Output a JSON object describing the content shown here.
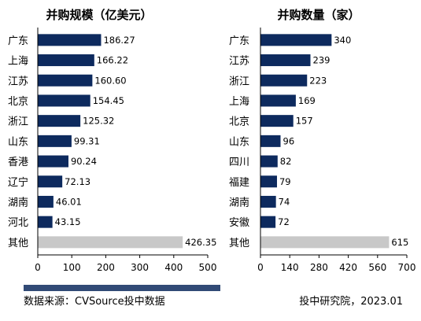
{
  "chart_data": [
    {
      "type": "bar",
      "orientation": "horizontal",
      "title": "并购规模（亿美元）",
      "categories": [
        "广东",
        "上海",
        "江苏",
        "北京",
        "浙江",
        "山东",
        "香港",
        "辽宁",
        "湖南",
        "河北",
        "其他"
      ],
      "values": [
        186.27,
        166.22,
        160.6,
        154.45,
        125.32,
        99.31,
        90.24,
        72.13,
        46.01,
        43.15,
        426.35
      ],
      "value_labels": [
        "186.27",
        "166.22",
        "160.60",
        "154.45",
        "125.32",
        "99.31",
        "90.24",
        "72.13",
        "46.01",
        "43.15",
        "426.35"
      ],
      "xlim": [
        0,
        500
      ],
      "xticks": [
        0,
        100,
        200,
        300,
        400,
        500
      ],
      "colors": [
        "#0d2a5e",
        "#0d2a5e",
        "#0d2a5e",
        "#0d2a5e",
        "#0d2a5e",
        "#0d2a5e",
        "#0d2a5e",
        "#0d2a5e",
        "#0d2a5e",
        "#0d2a5e",
        "#c8c8c8"
      ],
      "grid": false,
      "legend": "none"
    },
    {
      "type": "bar",
      "orientation": "horizontal",
      "title": "并购数量（家）",
      "categories": [
        "广东",
        "江苏",
        "浙江",
        "上海",
        "北京",
        "山东",
        "四川",
        "福建",
        "湖南",
        "安徽",
        "其他"
      ],
      "values": [
        340,
        239,
        223,
        169,
        157,
        96,
        82,
        79,
        74,
        72,
        615
      ],
      "value_labels": [
        "340",
        "239",
        "223",
        "169",
        "157",
        "96",
        "82",
        "79",
        "74",
        "72",
        "615"
      ],
      "xlim": [
        0,
        700
      ],
      "xticks": [
        0,
        140,
        280,
        420,
        560,
        700
      ],
      "colors": [
        "#0d2a5e",
        "#0d2a5e",
        "#0d2a5e",
        "#0d2a5e",
        "#0d2a5e",
        "#0d2a5e",
        "#0d2a5e",
        "#0d2a5e",
        "#0d2a5e",
        "#0d2a5e",
        "#c8c8c8"
      ],
      "grid": false,
      "legend": "none"
    }
  ],
  "footer": {
    "source": "数据来源：CVSource投中数据",
    "credit": "投中研究院，2023.01"
  }
}
